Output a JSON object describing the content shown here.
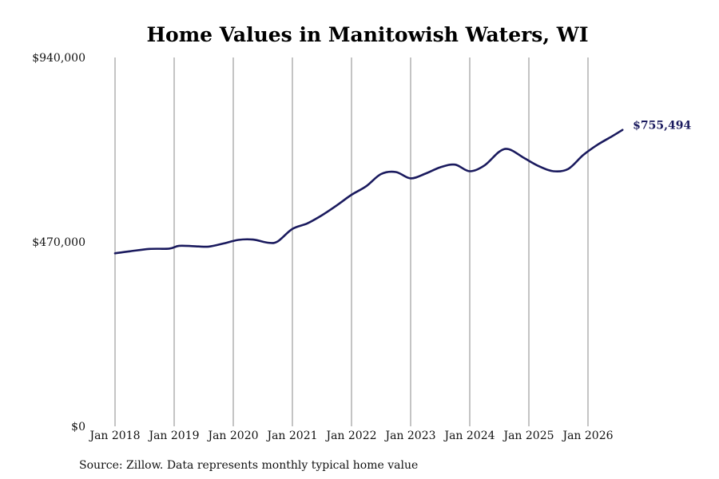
{
  "chart_data": {
    "type": "line",
    "title": "Home Values in Manitowish Waters, WI",
    "source": "Source: Zillow. Data represents monthly typical home value",
    "ylim": [
      0,
      940000
    ],
    "y_ticks": [
      0,
      470000,
      940000
    ],
    "y_tick_labels": [
      "$0",
      "$470,000",
      "$940,000"
    ],
    "x_ticks": [
      "2018-01",
      "2019-01",
      "2020-01",
      "2021-01",
      "2022-01",
      "2023-01",
      "2024-01",
      "2025-01",
      "2026-01"
    ],
    "x_tick_labels": [
      "Jan 2018",
      "Jan 2019",
      "Jan 2020",
      "Jan 2021",
      "Jan 2022",
      "Jan 2023",
      "Jan 2024",
      "Jan 2025",
      "Jan 2026"
    ],
    "grid": "vertical",
    "line_color": "#1a1a5e",
    "end_label": "$755,494",
    "series": [
      {
        "x": [
          "2018-01",
          "2018-04",
          "2018-08",
          "2018-12",
          "2019-02",
          "2019-05",
          "2019-08",
          "2019-11",
          "2020-02",
          "2020-05",
          "2020-08",
          "2020-10",
          "2021-01",
          "2021-04",
          "2021-07",
          "2021-10",
          "2022-01",
          "2022-04",
          "2022-07",
          "2022-10",
          "2023-01",
          "2023-04",
          "2023-07",
          "2023-10",
          "2024-01",
          "2024-04",
          "2024-07",
          "2024-09",
          "2024-12",
          "2025-03",
          "2025-06",
          "2025-09",
          "2025-12",
          "2026-03",
          "2026-06",
          "2026-08"
        ],
        "y": [
          441000,
          446000,
          452000,
          453000,
          460000,
          459000,
          458000,
          466000,
          475000,
          476000,
          468000,
          471000,
          503000,
          517000,
          538000,
          563000,
          590000,
          612000,
          643000,
          648000,
          632000,
          644000,
          660000,
          667000,
          650000,
          665000,
          700000,
          706000,
          684000,
          663000,
          650000,
          656000,
          691000,
          718000,
          740000,
          755494
        ]
      }
    ]
  }
}
